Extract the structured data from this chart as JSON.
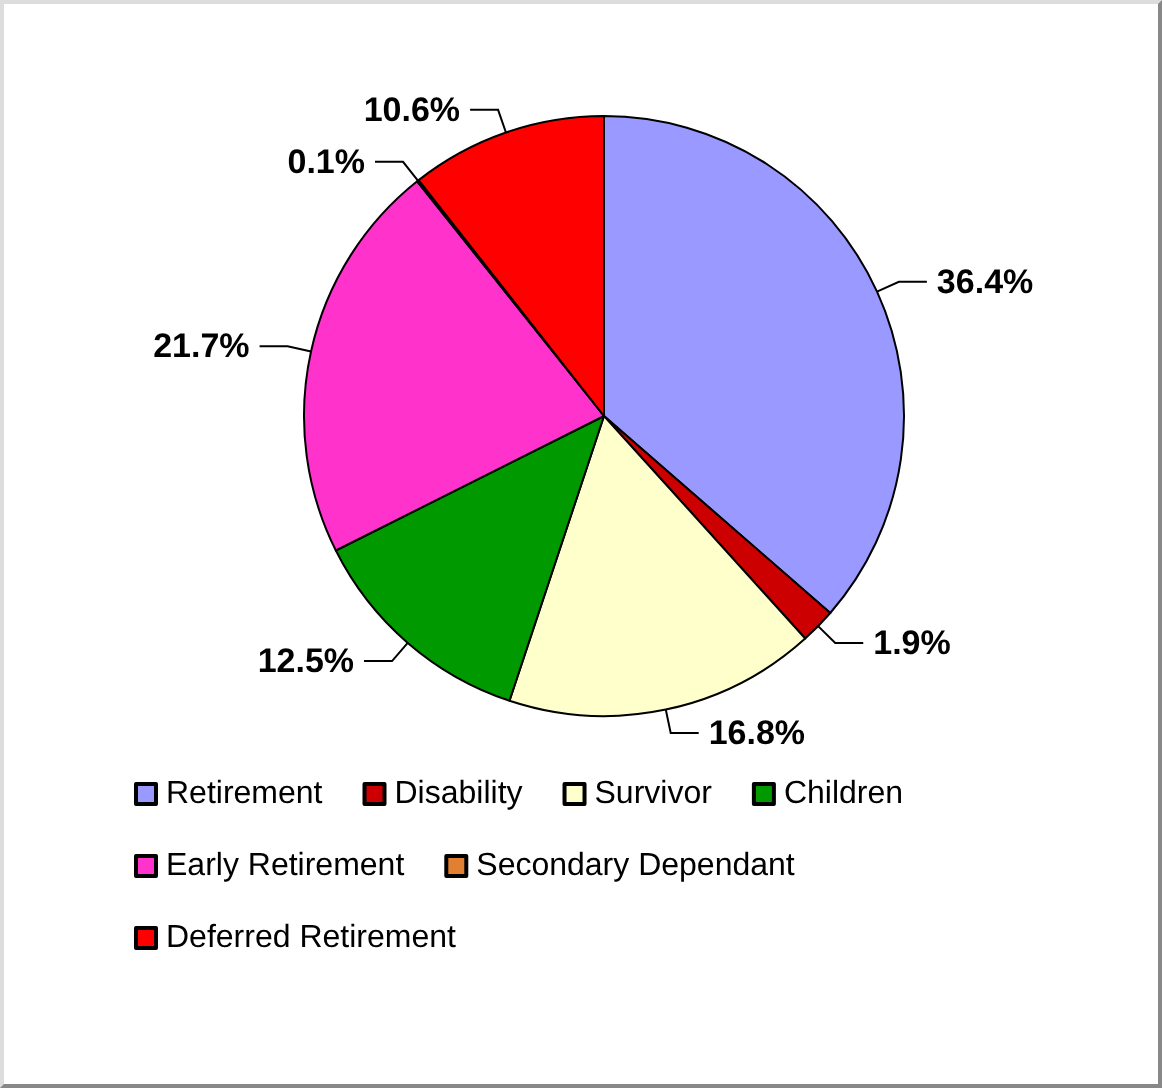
{
  "chart_data": {
    "type": "pie",
    "categories": [
      "Retirement",
      "Disability",
      "Survivor",
      "Children",
      "Early Retirement",
      "Secondary Dependant",
      "Deferred Retirement"
    ],
    "values": [
      36.4,
      1.9,
      16.8,
      12.5,
      21.7,
      0.1,
      10.6
    ],
    "colors": [
      "#9999ff",
      "#cc0000",
      "#ffffcc",
      "#009900",
      "#ff33cc",
      "#e08030",
      "#ff0000"
    ],
    "value_labels": [
      "36.4%",
      "1.9%",
      "16.8%",
      "12.5%",
      "21.7%",
      "0.1%",
      "10.6%"
    ],
    "legend": "bottom"
  }
}
